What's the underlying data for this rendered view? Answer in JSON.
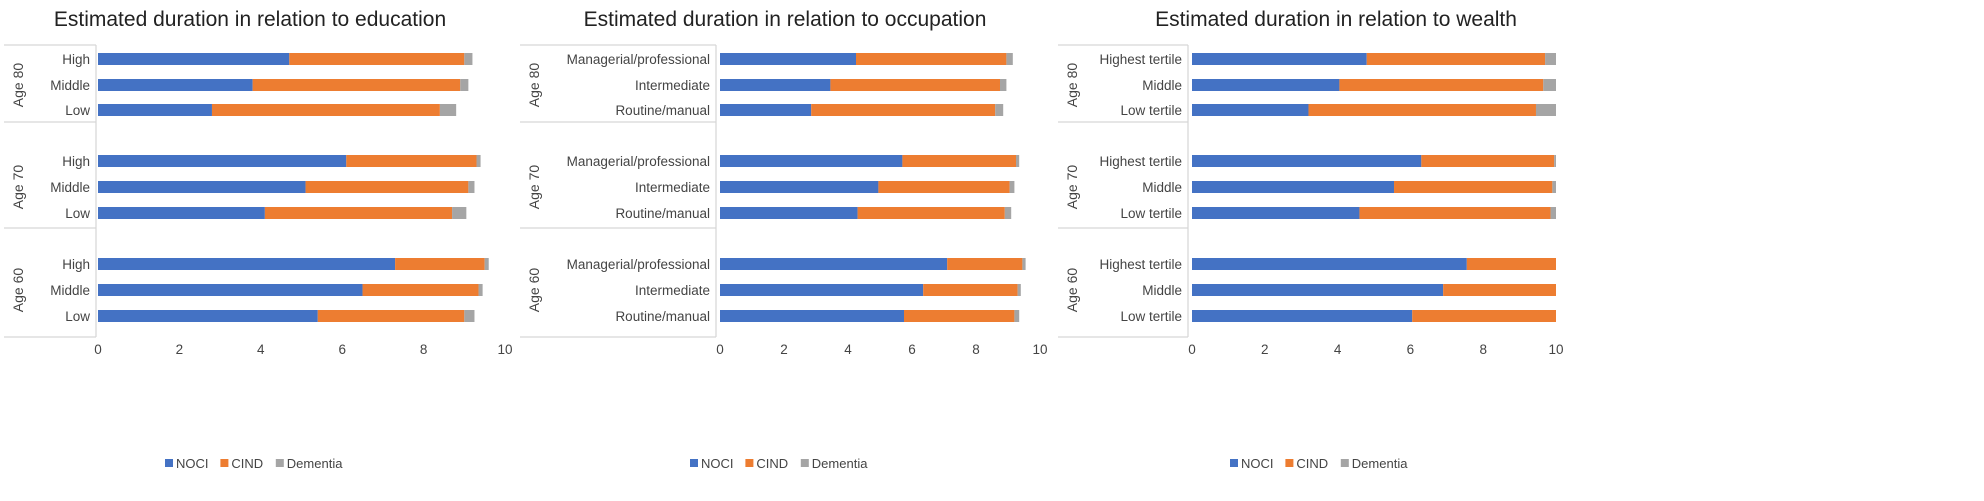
{
  "colors": {
    "NOCI": "#4472c4",
    "CIND": "#ed7d31",
    "Dementia": "#a5a5a5"
  },
  "chart_data": [
    {
      "type": "bar",
      "orientation": "horizontal",
      "stacked": true,
      "title": "Estimated duration in relation to education",
      "groups": [
        "Age 80",
        "Age 70",
        "Age 60"
      ],
      "categories": [
        "High",
        "Middle",
        "Low"
      ],
      "xlim": [
        0,
        10
      ],
      "xticks": [
        "0",
        "2",
        "4",
        "6",
        "8",
        "10"
      ],
      "legend": "bottom",
      "series": [
        {
          "name": "NOCI",
          "values": [
            [
              4.7,
              3.8,
              2.8
            ],
            [
              6.1,
              5.1,
              4.1
            ],
            [
              7.3,
              6.5,
              5.4
            ]
          ]
        },
        {
          "name": "CIND",
          "values": [
            [
              4.3,
              5.1,
              5.6
            ],
            [
              3.2,
              4.0,
              4.6
            ],
            [
              2.2,
              2.85,
              3.6
            ]
          ]
        },
        {
          "name": "Dementia",
          "values": [
            [
              0.2,
              0.2,
              0.4
            ],
            [
              0.1,
              0.15,
              0.35
            ],
            [
              0.1,
              0.1,
              0.25
            ]
          ]
        }
      ]
    },
    {
      "type": "bar",
      "orientation": "horizontal",
      "stacked": true,
      "title": "Estimated duration in relation to occupation",
      "groups": [
        "Age 80",
        "Age 70",
        "Age 60"
      ],
      "categories": [
        "Managerial/professional",
        "Intermediate",
        "Routine/manual"
      ],
      "xlim": [
        0,
        10
      ],
      "xticks": [
        "0",
        "2",
        "4",
        "6",
        "8",
        "10"
      ],
      "legend": "bottom",
      "series": [
        {
          "name": "NOCI",
          "values": [
            [
              4.25,
              3.45,
              2.85
            ],
            [
              5.7,
              4.95,
              4.3
            ],
            [
              7.1,
              6.35,
              5.75
            ]
          ]
        },
        {
          "name": "CIND",
          "values": [
            [
              4.7,
              5.3,
              5.75
            ],
            [
              3.55,
              4.1,
              4.6
            ],
            [
              2.35,
              2.95,
              3.45
            ]
          ]
        },
        {
          "name": "Dementia",
          "values": [
            [
              0.2,
              0.2,
              0.25
            ],
            [
              0.1,
              0.15,
              0.2
            ],
            [
              0.1,
              0.1,
              0.15
            ]
          ]
        }
      ]
    },
    {
      "type": "bar",
      "orientation": "horizontal",
      "stacked": true,
      "title": "Estimated duration in relation to wealth",
      "groups": [
        "Age 80",
        "Age 70",
        "Age 60"
      ],
      "categories": [
        "Highest tertile",
        "Middle",
        "Low tertile"
      ],
      "xlim": [
        0,
        10
      ],
      "xticks": [
        "0",
        "2",
        "4",
        "6",
        "8",
        "10"
      ],
      "legend": "bottom",
      "series": [
        {
          "name": "NOCI",
          "values": [
            [
              4.8,
              4.05,
              3.2
            ],
            [
              6.3,
              5.55,
              4.6
            ],
            [
              7.55,
              6.9,
              6.05
            ]
          ]
        },
        {
          "name": "CIND",
          "values": [
            [
              4.9,
              5.6,
              6.25
            ],
            [
              3.65,
              4.35,
              5.25
            ],
            [
              2.45,
              3.1,
              3.95
            ]
          ]
        },
        {
          "name": "Dementia",
          "values": [
            [
              0.3,
              0.35,
              0.55
            ],
            [
              0.05,
              0.1,
              0.15
            ],
            [
              0,
              0,
              0
            ]
          ]
        }
      ]
    }
  ]
}
